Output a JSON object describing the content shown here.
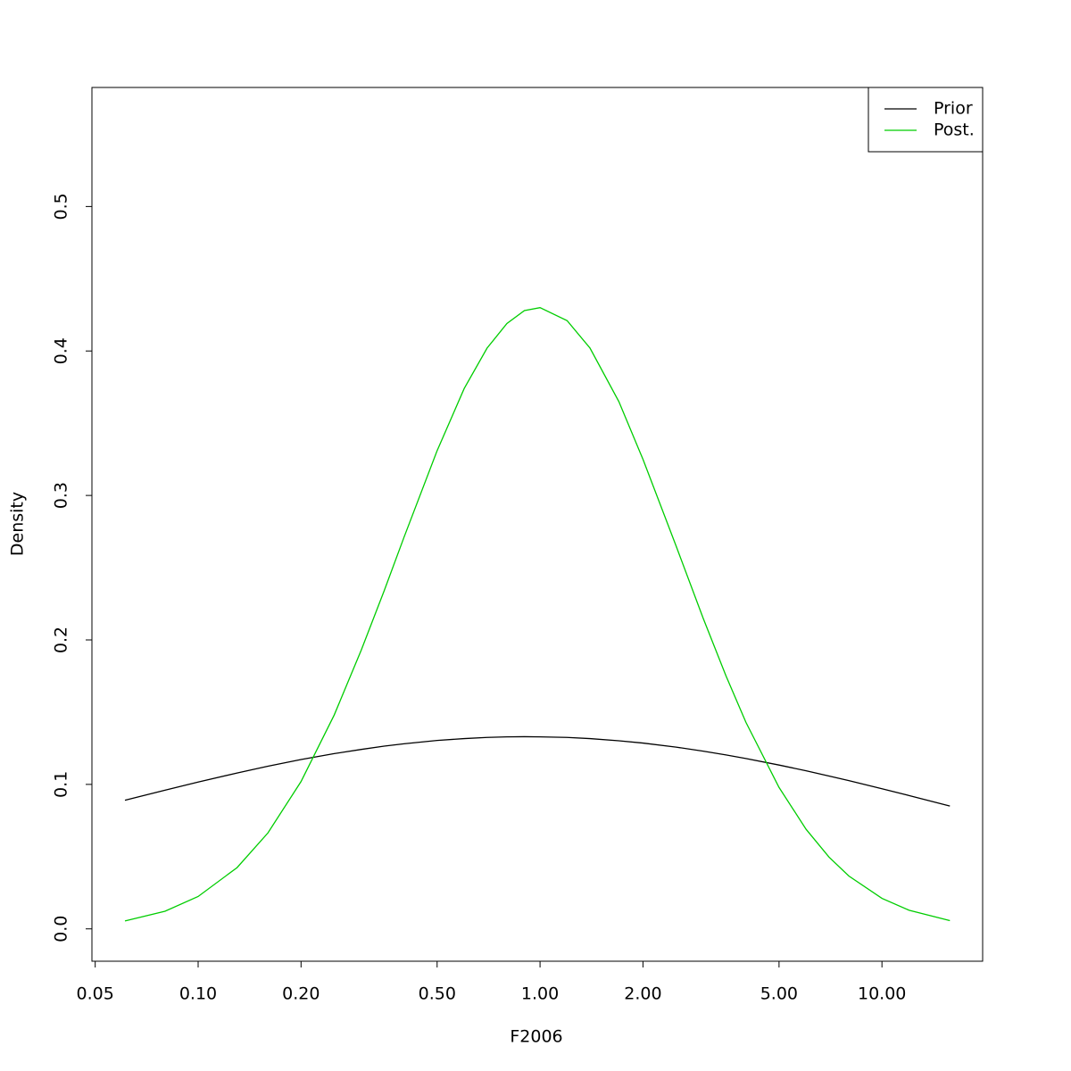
{
  "chart_data": {
    "type": "line",
    "xlabel": "F2006",
    "ylabel": "Density",
    "xscale": "log",
    "x": [
      0.0611,
      0.08,
      0.1,
      0.13,
      0.16,
      0.2,
      0.25,
      0.3,
      0.35,
      0.4,
      0.5,
      0.6,
      0.7,
      0.8,
      0.9,
      1.0,
      1.2,
      1.4,
      1.7,
      2.0,
      2.5,
      3,
      3.5,
      4,
      5,
      6,
      7,
      8,
      10,
      12,
      15.8
    ],
    "series": [
      {
        "name": "Prior",
        "color": "#000000",
        "values": [
          0.089,
          0.096,
          0.1016,
          0.1079,
          0.1126,
          0.1172,
          0.1213,
          0.1242,
          0.1265,
          0.1281,
          0.1304,
          0.1317,
          0.1325,
          0.1329,
          0.133,
          0.1329,
          0.1325,
          0.1317,
          0.1302,
          0.1286,
          0.1258,
          0.123,
          0.1204,
          0.1179,
          0.1134,
          0.1094,
          0.1058,
          0.1026,
          0.097,
          0.0923,
          0.085
        ]
      },
      {
        "name": "Post.",
        "color": "#00cd00",
        "values": [
          0.0055,
          0.0122,
          0.0224,
          0.0424,
          0.0664,
          0.102,
          0.148,
          0.193,
          0.234,
          0.271,
          0.331,
          0.374,
          0.402,
          0.419,
          0.428,
          0.43,
          0.421,
          0.402,
          0.365,
          0.325,
          0.265,
          0.215,
          0.175,
          0.143,
          0.0979,
          0.0689,
          0.0497,
          0.0366,
          0.0211,
          0.0129,
          0.0057
        ]
      }
    ],
    "xlim": [
      0.04891,
      19.7
    ],
    "xticks": [
      0.05,
      {
        "value": 0.1,
        "label": "0.10"
      },
      {
        "value": 0.2,
        "label": "0.20"
      },
      {
        "value": 0.5,
        "label": "0.50"
      },
      {
        "value": 1,
        "label": "1.00"
      },
      {
        "value": 2,
        "label": "2.00"
      },
      {
        "value": 5,
        "label": "5.00"
      },
      {
        "value": 10,
        "label": "10.00"
      }
    ],
    "ylim": [
      -0.0224,
      0.5824
    ],
    "yticks": [
      {
        "value": 0,
        "label": "0.0"
      },
      0.1,
      0.2,
      0.3,
      0.4,
      0.5
    ],
    "legend": "top-right"
  }
}
